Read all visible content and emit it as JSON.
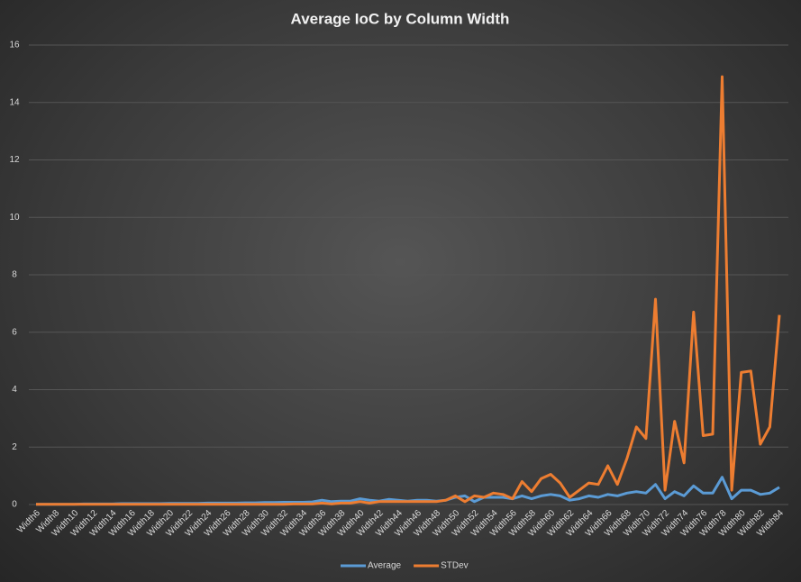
{
  "chart_data": {
    "type": "line",
    "title": "Average IoC by Column Width",
    "categories": [
      "Width6",
      null,
      "Width8",
      null,
      "Width10",
      null,
      "Width12",
      null,
      "Width14",
      null,
      "Width16",
      null,
      "Width18",
      null,
      "Width20",
      null,
      "Width22",
      null,
      "Width24",
      null,
      "Width26",
      null,
      "Width28",
      null,
      "Width30",
      null,
      "Width32",
      null,
      "Width34",
      null,
      "Width36",
      null,
      "Width38",
      null,
      "Width40",
      null,
      "Width42",
      null,
      "Width44",
      null,
      "Width46",
      null,
      "Width48",
      null,
      "Width50",
      null,
      "Width52",
      null,
      "Width54",
      null,
      "Width56",
      null,
      "Width58",
      null,
      "Width60",
      null,
      "Width62",
      null,
      "Width64",
      null,
      "Width66",
      null,
      "Width68",
      null,
      "Width70",
      null,
      "Width72",
      null,
      "Width74",
      null,
      "Width76",
      null,
      "Width78",
      null,
      "Width80",
      null,
      "Width82",
      null,
      "Width84"
    ],
    "series": [
      {
        "name": "Average",
        "color": "#5b9bd5",
        "values": [
          0.01,
          0.01,
          0.01,
          0.01,
          0.01,
          0.02,
          0.02,
          0.02,
          0.02,
          0.03,
          0.03,
          0.03,
          0.03,
          0.03,
          0.04,
          0.04,
          0.04,
          0.04,
          0.05,
          0.05,
          0.05,
          0.05,
          0.06,
          0.06,
          0.07,
          0.07,
          0.08,
          0.08,
          0.08,
          0.09,
          0.15,
          0.1,
          0.12,
          0.12,
          0.2,
          0.15,
          0.12,
          0.18,
          0.15,
          0.12,
          0.15,
          0.15,
          0.12,
          0.15,
          0.25,
          0.3,
          0.1,
          0.25,
          0.25,
          0.25,
          0.2,
          0.3,
          0.2,
          0.3,
          0.35,
          0.3,
          0.15,
          0.2,
          0.3,
          0.25,
          0.35,
          0.3,
          0.4,
          0.45,
          0.4,
          0.7,
          0.2,
          0.45,
          0.3,
          0.65,
          0.4,
          0.4,
          0.95,
          0.2,
          0.5,
          0.5,
          0.35,
          0.4,
          0.6
        ]
      },
      {
        "name": "STDev",
        "color": "#ed7d31",
        "values": [
          0.01,
          0.01,
          0.01,
          0.01,
          0.01,
          0.01,
          0.01,
          0.01,
          0.01,
          0.01,
          0.01,
          0.01,
          0.01,
          0.01,
          0.01,
          0.01,
          0.01,
          0.01,
          0.01,
          0.01,
          0.01,
          0.01,
          0.01,
          0.01,
          0.01,
          0.01,
          0.01,
          0.02,
          0.02,
          0.02,
          0.05,
          0.02,
          0.05,
          0.05,
          0.1,
          0.05,
          0.1,
          0.1,
          0.1,
          0.1,
          0.1,
          0.1,
          0.1,
          0.15,
          0.3,
          0.1,
          0.3,
          0.25,
          0.4,
          0.35,
          0.2,
          0.8,
          0.45,
          0.9,
          1.05,
          0.75,
          0.25,
          0.5,
          0.75,
          0.7,
          1.35,
          0.7,
          1.6,
          2.7,
          2.3,
          7.15,
          0.5,
          2.9,
          1.45,
          6.7,
          2.4,
          2.45,
          14.9,
          0.5,
          4.6,
          4.65,
          2.1,
          2.7,
          6.6
        ]
      }
    ],
    "ylim": [
      0,
      16
    ],
    "yticks": [
      0,
      2,
      4,
      6,
      8,
      10,
      12,
      14,
      16
    ],
    "grid": true,
    "legend": "bottom"
  }
}
